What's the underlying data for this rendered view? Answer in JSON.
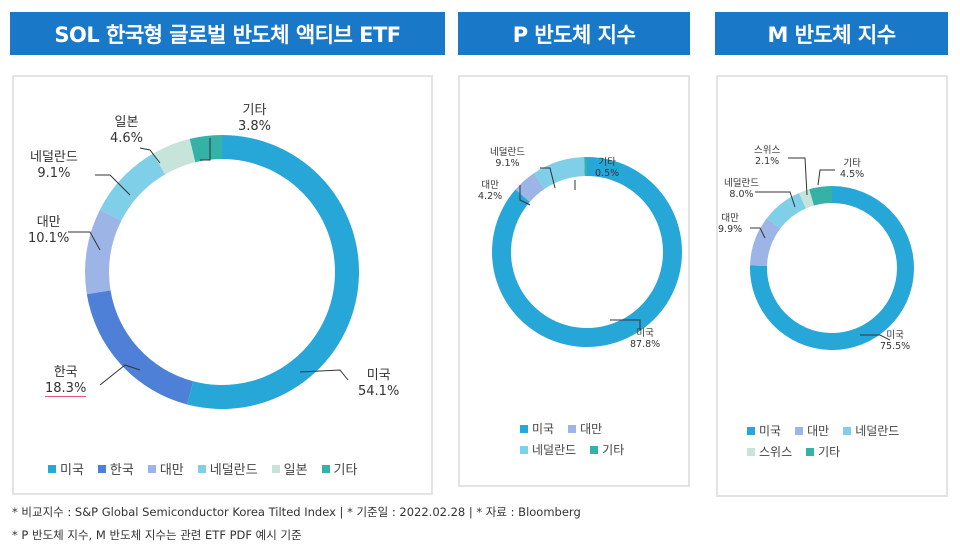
{
  "footnotes": [
    "* 비교지수 : S&P Global Semiconductor Korea Tilted Index | * 기준일 : 2022.02.28 | * 자료 : Bloomberg",
    "* P 반도체 지수, M  반도체 지수는  관련 ETF PDF 예시 기준"
  ],
  "colors": {
    "미국": "#27a6d8",
    "한국": "#4d80d6",
    "대만": "#9db5e6",
    "네덜란드": "#80cfe9",
    "일본": "#c6e4da",
    "스위스": "#c6e4da",
    "기타": "#36b1a8"
  },
  "chart_data": [
    {
      "type": "pie",
      "variant": "donut",
      "title": "SOL 한국형 글로벌 반도체 액티브 ETF",
      "categories": [
        "미국",
        "한국",
        "대만",
        "네덜란드",
        "일본",
        "기타"
      ],
      "values": [
        54.1,
        18.3,
        10.1,
        9.1,
        4.6,
        3.8
      ],
      "labels": [
        "54.1%",
        "18.3%",
        "10.1%",
        "9.1%",
        "4.6%",
        "3.8%"
      ],
      "legend": [
        "미국",
        "한국",
        "대만",
        "네덜란드",
        "일본",
        "기타"
      ],
      "legend_position": "bottom"
    },
    {
      "type": "pie",
      "variant": "donut",
      "title": "P  반도체 지수",
      "categories": [
        "미국",
        "대만",
        "네덜란드",
        "기타"
      ],
      "values": [
        87.8,
        4.2,
        9.1,
        0.5
      ],
      "labels": [
        "87.8%",
        "4.2%",
        "9.1%",
        "0.5%"
      ],
      "legend": [
        "미국",
        "대만",
        "네덜란드",
        "기타"
      ],
      "legend_position": "bottom"
    },
    {
      "type": "pie",
      "variant": "donut",
      "title": "M 반도체  지수",
      "categories": [
        "미국",
        "대만",
        "네덜란드",
        "스위스",
        "기타"
      ],
      "values": [
        75.5,
        9.9,
        8.0,
        2.1,
        4.5
      ],
      "labels": [
        "75.5%",
        "9.9%",
        "8.0%",
        "2.1%",
        "4.5%"
      ],
      "legend": [
        "미국",
        "대만",
        "네덜란드",
        "스위스",
        "기타"
      ],
      "legend_position": "bottom"
    }
  ]
}
